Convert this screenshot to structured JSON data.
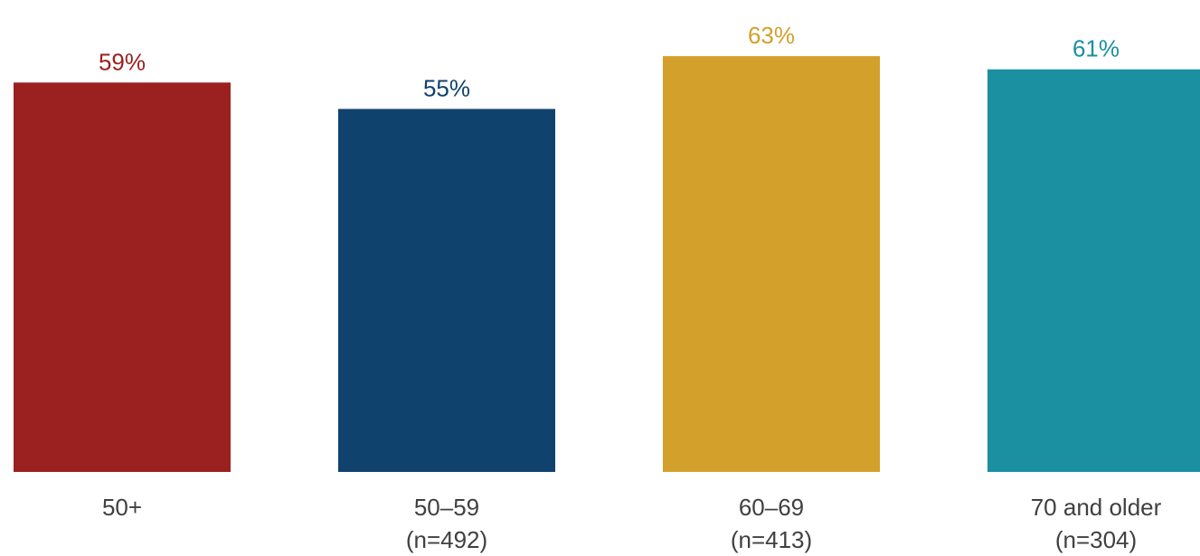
{
  "chart_data": {
    "type": "bar",
    "categories": [
      "50+",
      "50–59",
      "60–69",
      "70 and older"
    ],
    "sublabels": [
      "",
      "(n=492)",
      "(n=413)",
      "(n=304)"
    ],
    "values": [
      59,
      55,
      63,
      61
    ],
    "value_labels": [
      "59%",
      "55%",
      "63%",
      "61%"
    ],
    "colors": [
      "#9b2020",
      "#10426e",
      "#d4a02c",
      "#1a90a0"
    ],
    "label_color": "#404040",
    "ylim": [
      0,
      100
    ],
    "grid": false,
    "legend": "none",
    "title": "",
    "xlabel": "",
    "ylabel": ""
  }
}
